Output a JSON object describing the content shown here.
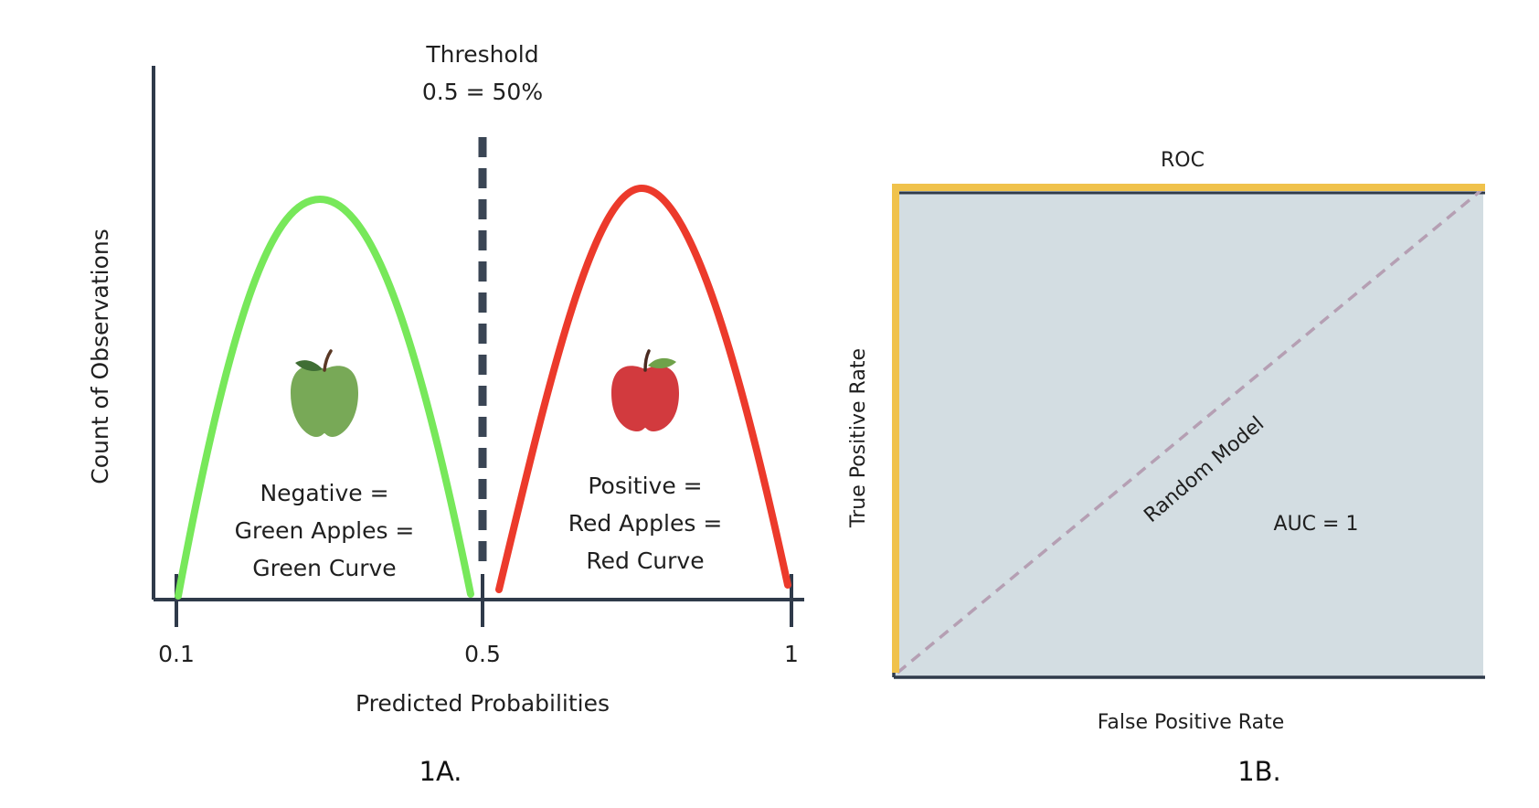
{
  "panel_a": {
    "threshold_title": "Threshold",
    "threshold_value": "0.5 = 50%",
    "ylabel": "Count of Observations",
    "xlabel": "Predicted Probabilities",
    "ticks": [
      "0.1",
      "0.5",
      "1"
    ],
    "negative_text": [
      "Negative =",
      "Green Apples =",
      "Green Curve"
    ],
    "positive_text": [
      "Positive =",
      "Red Apples =",
      "Red Curve"
    ],
    "caption": "1A.",
    "colors": {
      "negative_curve": "#77e85a",
      "positive_curve": "#ec3a2b",
      "axis": "#2f3a4a",
      "green_apple": "#78a957",
      "red_apple": "#d23a3e"
    }
  },
  "panel_b": {
    "title": "ROC",
    "xlabel": "False Positive Rate",
    "ylabel": "True Positive Rate",
    "diagonal_label": "Random Model",
    "auc_label": "AUC = 1",
    "caption": "1B.",
    "colors": {
      "roc_curve": "#f0c24b",
      "area_fill": "#d3dde2",
      "diagonal": "#b59fb3",
      "axis": "#2f3a4a"
    }
  }
}
